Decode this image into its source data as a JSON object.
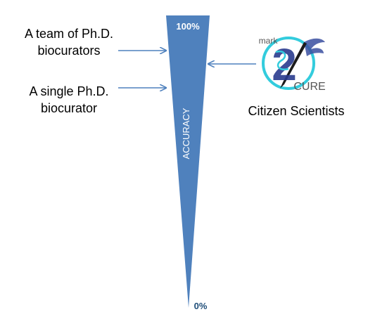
{
  "labels": {
    "team": [
      "A team of Ph.D.",
      "biocurators"
    ],
    "single": [
      "A single Ph.D.",
      "biocurator"
    ],
    "citizen": "Citizen Scientists"
  },
  "scale": {
    "top": "100%",
    "bottom": "0%",
    "axis_title": "ACCURACY"
  },
  "logo": {
    "word_top": "mark",
    "numeral": "2",
    "word_bottom": "CURE"
  },
  "colors": {
    "wedge": "#4f81bd",
    "wedge_text": "#ffffff",
    "bottom_label": "#1f4e79",
    "arrow": "#4f81bd",
    "logo_ring": "#33ccdd",
    "logo_numeral": "#2a3b8f",
    "logo_text": "#555555"
  }
}
